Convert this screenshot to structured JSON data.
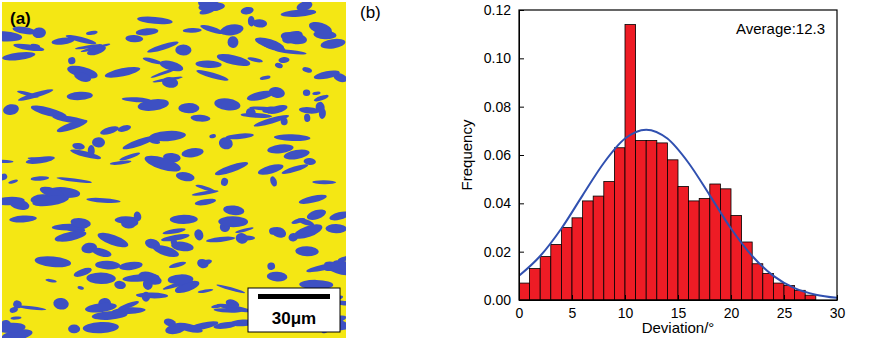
{
  "chart_data": [
    {
      "type": "image",
      "label": "(a)",
      "scale_bar": "30μm"
    },
    {
      "type": "histogram",
      "label": "(b)",
      "x_label": "Deviation/°",
      "y_label": "Frequency",
      "annotation": "Average:12.3",
      "bins": [
        0,
        1,
        2,
        3,
        4,
        5,
        6,
        7,
        8,
        9,
        10,
        11,
        12,
        13,
        14,
        15,
        16,
        17,
        18,
        19,
        20,
        21,
        22,
        23,
        24,
        25,
        26,
        27,
        28
      ],
      "values": [
        0.007,
        0.013,
        0.018,
        0.023,
        0.03,
        0.034,
        0.041,
        0.043,
        0.049,
        0.063,
        0.114,
        0.066,
        0.066,
        0.065,
        0.058,
        0.047,
        0.041,
        0.042,
        0.048,
        0.046,
        0.035,
        0.024,
        0.015,
        0.011,
        0.007,
        0.006,
        0.004,
        0.002
      ],
      "color": "#ee1c25",
      "lines": [
        {
          "type": "line",
          "color": "#3050b0",
          "x": [
            0,
            2,
            4,
            6,
            8,
            10,
            12,
            14,
            16,
            18,
            20,
            22,
            24,
            26,
            28,
            30
          ],
          "values": [
            0.01,
            0.0182,
            0.0296,
            0.0433,
            0.0567,
            0.0668,
            0.0705,
            0.0668,
            0.0567,
            0.0433,
            0.0296,
            0.0182,
            0.01,
            0.0049,
            0.0022,
            0.0009
          ]
        }
      ],
      "xlim": [
        0,
        30
      ],
      "xticks": [
        0,
        5,
        10,
        15,
        20,
        25,
        30
      ],
      "ylim": [
        0,
        0.12
      ],
      "yticks": [
        {
          "value": 0,
          "label": "0.00"
        },
        {
          "value": 0.02,
          "label": "0.02"
        },
        {
          "value": 0.04,
          "label": "0.04"
        },
        {
          "value": 0.06,
          "label": "0.06"
        },
        {
          "value": 0.08,
          "label": "0.08"
        },
        {
          "value": 0.1,
          "label": "0.10"
        },
        {
          "value": 0.12,
          "label": "0.12"
        }
      ],
      "grid": false
    }
  ]
}
